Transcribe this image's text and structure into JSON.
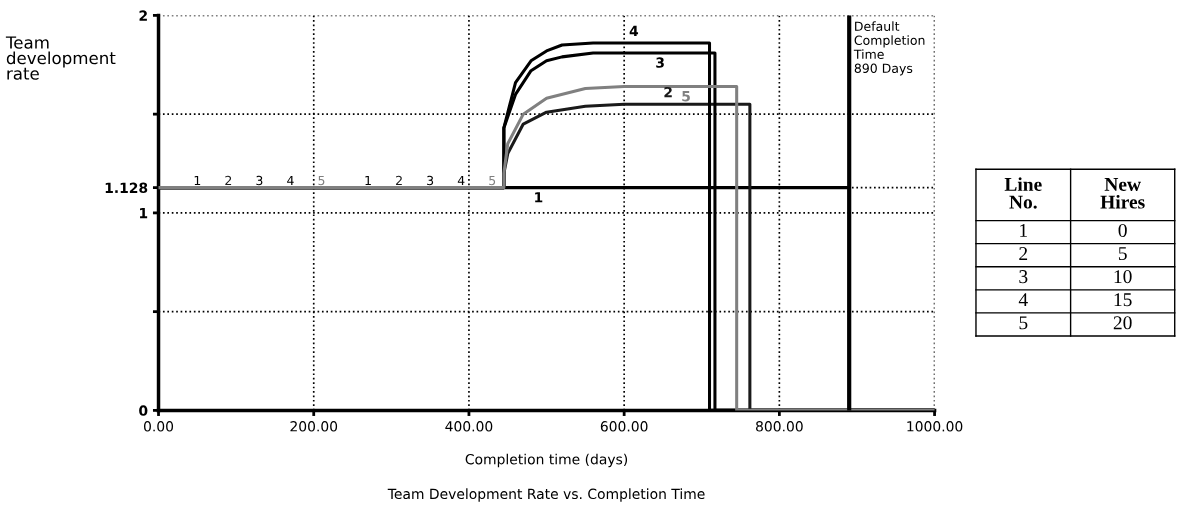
{
  "chart_data": {
    "type": "line",
    "title": "Team Development Rate vs. Completion Time",
    "xlabel": "Completion time (days)",
    "ylabel": "Team development rate",
    "series": [
      {
        "name": "1",
        "color": "#000000",
        "x": [
          0,
          890,
          890,
          1000
        ],
        "values": [
          1.128,
          1.128,
          0,
          0
        ]
      },
      {
        "name": "2",
        "color": "#1a1a1a",
        "x": [
          0,
          445,
          445,
          450,
          470,
          500,
          550,
          600,
          762,
          762,
          1000
        ],
        "values": [
          1.128,
          1.128,
          1.2,
          1.3,
          1.45,
          1.51,
          1.54,
          1.55,
          1.55,
          0,
          0
        ]
      },
      {
        "name": "3",
        "color": "#000000",
        "x": [
          0,
          445,
          445,
          460,
          480,
          500,
          520,
          560,
          717,
          717,
          1000
        ],
        "values": [
          1.128,
          1.128,
          1.43,
          1.6,
          1.72,
          1.77,
          1.79,
          1.81,
          1.81,
          0,
          0
        ]
      },
      {
        "name": "4",
        "color": "#000000",
        "x": [
          0,
          445,
          445,
          460,
          480,
          500,
          520,
          560,
          710,
          710,
          1000
        ],
        "values": [
          1.128,
          1.128,
          1.43,
          1.66,
          1.77,
          1.82,
          1.85,
          1.86,
          1.86,
          0,
          0
        ]
      },
      {
        "name": "5",
        "color": "#808080",
        "x": [
          0,
          445,
          445,
          450,
          470,
          500,
          550,
          600,
          745,
          745,
          1000
        ],
        "values": [
          1.128,
          1.128,
          1.2,
          1.35,
          1.5,
          1.58,
          1.63,
          1.64,
          1.64,
          0,
          0
        ]
      }
    ],
    "xlim": [
      0,
      1000
    ],
    "ylim": [
      0,
      2
    ],
    "xticks": [
      {
        "value": 0,
        "label": "0.00"
      },
      {
        "value": 200,
        "label": "200.00"
      },
      {
        "value": 400,
        "label": "400.00"
      },
      {
        "value": 600,
        "label": "600.00"
      },
      {
        "value": 800,
        "label": "800.00"
      },
      {
        "value": 1000,
        "label": "1000.00"
      }
    ],
    "yticks": [
      0,
      {
        "value": 0.5,
        "label": null
      },
      1,
      1.128,
      {
        "value": 1.5,
        "label": null
      },
      2
    ],
    "ref_lines": [
      {
        "axis": "x",
        "value": 890,
        "label": "Default\nCompletion\nTime\n890 Days",
        "color": "#000000"
      }
    ],
    "grid": true,
    "line_style": "solid",
    "marker": "none",
    "legend": false,
    "annotations": [
      "Line No.",
      "New Hires",
      "1",
      "0",
      "2",
      "5",
      "3",
      "10",
      "4",
      "15",
      "5",
      "20"
    ]
  }
}
